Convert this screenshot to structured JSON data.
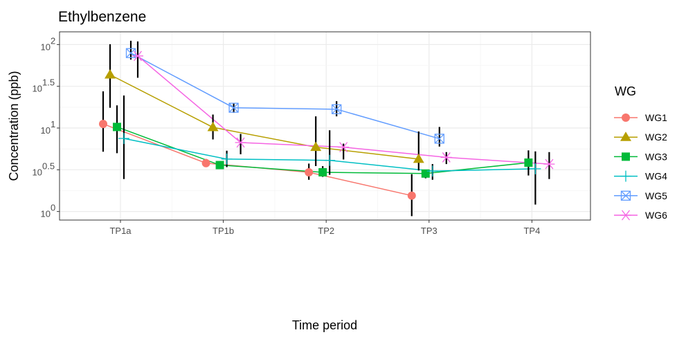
{
  "chart_data": {
    "type": "line",
    "title": "Ethylbenzene",
    "xlabel": "Time period",
    "ylabel": "Concentration (ppb)",
    "categories": [
      "TP1a",
      "TP1b",
      "TP2",
      "TP3",
      "TP4"
    ],
    "y_scale": "log10",
    "ylim": [
      0.79,
      142
    ],
    "y_ticks": [
      {
        "value": 1,
        "label_base": "10",
        "label_exp": "0"
      },
      {
        "value": 3.162,
        "label_base": "10",
        "label_exp": "0.5"
      },
      {
        "value": 10,
        "label_base": "10",
        "label_exp": "1"
      },
      {
        "value": 31.62,
        "label_base": "10",
        "label_exp": "1.5"
      },
      {
        "value": 100,
        "label_base": "10",
        "label_exp": "2"
      }
    ],
    "grid": true,
    "legend": {
      "title": "WG",
      "position": "right"
    },
    "series": [
      {
        "name": "WG1",
        "color": "#F8766D",
        "marker": "circle",
        "values": [
          11.2,
          3.8,
          2.95,
          1.55,
          null
        ],
        "err_low": [
          5.2,
          3.45,
          2.4,
          0.88,
          null
        ],
        "err_high": [
          27.5,
          4.25,
          3.75,
          2.8,
          null
        ]
      },
      {
        "name": "WG2",
        "color": "#B79F00",
        "marker": "triangle",
        "values": [
          43.5,
          10.2,
          5.9,
          4.25,
          null
        ],
        "err_low": [
          17.5,
          7.3,
          3.5,
          3.1,
          null
        ],
        "err_high": [
          101,
          14.5,
          13.8,
          9.1,
          null
        ]
      },
      {
        "name": "WG3",
        "color": "#00BA38",
        "marker": "square",
        "values": [
          10.3,
          3.6,
          2.95,
          2.85,
          3.85
        ],
        "err_low": [
          5.0,
          3.35,
          2.6,
          2.5,
          2.7
        ],
        "err_high": [
          18.7,
          3.9,
          3.5,
          3.15,
          5.4
        ]
      },
      {
        "name": "WG4",
        "color": "#00BFC4",
        "marker": "plus",
        "values": [
          7.5,
          4.25,
          4.1,
          3.05,
          3.25
        ],
        "err_low": [
          2.45,
          3.4,
          2.75,
          2.4,
          1.21
        ],
        "err_high": [
          24.5,
          5.35,
          9.4,
          3.7,
          5.25
        ]
      },
      {
        "name": "WG5",
        "color": "#619CFF",
        "marker": "square-x",
        "values": [
          79,
          17.5,
          16.8,
          7.45,
          null
        ],
        "err_low": [
          66,
          15.2,
          13.8,
          6.0,
          null
        ],
        "err_high": [
          111,
          19.8,
          21,
          10.3,
          null
        ]
      },
      {
        "name": "WG6",
        "color": "#F564E3",
        "marker": "asterisk",
        "values": [
          73,
          6.7,
          5.9,
          4.45,
          3.7
        ],
        "err_low": [
          40,
          4.85,
          4.2,
          3.7,
          2.45
        ],
        "err_high": [
          109,
          8.5,
          6.5,
          5.15,
          5.15
        ]
      }
    ]
  }
}
